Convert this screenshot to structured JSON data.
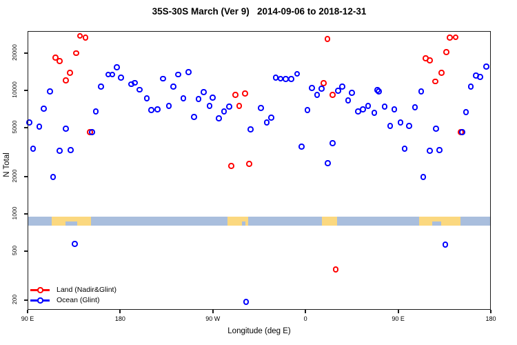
{
  "chart_data": {
    "type": "scatter",
    "title": "35S-30S March (Ver 9)   2014-09-06 to 2018-12-31",
    "xlabel": "Longitude (deg E)",
    "ylabel": "N Total",
    "x_axis": {
      "lim": [
        90,
        540
      ],
      "note": "longitude wraps eastward: 90E to 180 to 90W to 0 to 90E to 180",
      "ticks": [
        {
          "v": 90,
          "label": "90 E"
        },
        {
          "v": 180,
          "label": "180"
        },
        {
          "v": 270,
          "label": "90 W"
        },
        {
          "v": 360,
          "label": "0"
        },
        {
          "v": 450,
          "label": "90 E"
        },
        {
          "v": 540,
          "label": "180"
        }
      ]
    },
    "y_axis": {
      "scale": "log",
      "lim": [
        167,
        30270
      ],
      "ticks": [
        200,
        500,
        1000,
        2000,
        5000,
        10000,
        20000
      ],
      "tick_labels": [
        "200",
        "500",
        "1000",
        "2000",
        "5000",
        "10000",
        "20000"
      ]
    },
    "grid": false,
    "map_band": {
      "description": "35S-30S latitude strip map: ocean vs land along longitude",
      "ocean_color": "#a9bedd",
      "land_color": "#fbd87f",
      "n_range": [
        805,
        950
      ],
      "land_segments": [
        {
          "name": "australia",
          "lon": [
            113.5,
            151.5
          ]
        },
        {
          "name": "south-america",
          "lon": [
            284.0,
            304.0
          ]
        },
        {
          "name": "south-africa",
          "lon": [
            376.0,
            390.5
          ]
        },
        {
          "name": "australia-2",
          "lon": [
            470.5,
            510.5
          ]
        }
      ],
      "bites": [
        {
          "name": "great-australian-bight",
          "lon": [
            126.5,
            138.5
          ]
        },
        {
          "name": "rio-de-la-plata",
          "lon": [
            298.5,
            301.5
          ]
        },
        {
          "name": "great-australian-bight-2",
          "lon": [
            483.0,
            492.0
          ]
        }
      ]
    },
    "series": [
      {
        "name": "Land (Nadir&Glint)",
        "color": "#ff0000",
        "points": [
          [
            141,
            27600
          ],
          [
            146.5,
            26600
          ],
          [
            137.5,
            20000
          ],
          [
            117.5,
            18300
          ],
          [
            121.5,
            17200
          ],
          [
            131.5,
            13800
          ],
          [
            127.5,
            12000
          ],
          [
            151,
            4560
          ],
          [
            292,
            9140
          ],
          [
            301.5,
            9380
          ],
          [
            296,
            7440
          ],
          [
            288,
            2430
          ],
          [
            305.5,
            2520
          ],
          [
            381.5,
            25900
          ],
          [
            378,
            11400
          ],
          [
            386.5,
            9140
          ],
          [
            389.5,
            353
          ],
          [
            500.5,
            26600
          ],
          [
            506,
            26900
          ],
          [
            497,
            20300
          ],
          [
            477,
            18100
          ],
          [
            481,
            17400
          ],
          [
            492.5,
            13800
          ],
          [
            486.5,
            11800
          ],
          [
            511,
            4560
          ]
        ]
      },
      {
        "name": "Ocean (Glint)",
        "color": "#0000ff",
        "points": [
          [
            177,
            15300
          ],
          [
            168.5,
            13400
          ],
          [
            172.5,
            13400
          ],
          [
            181,
            12600
          ],
          [
            191,
            11200
          ],
          [
            194.5,
            11500
          ],
          [
            199,
            10100
          ],
          [
            161.5,
            10700
          ],
          [
            112,
            9750
          ],
          [
            106,
            7070
          ],
          [
            92,
            5460
          ],
          [
            101.5,
            5060
          ],
          [
            156.5,
            6710
          ],
          [
            127.5,
            4870
          ],
          [
            153,
            4560
          ],
          [
            95.5,
            3350
          ],
          [
            121.5,
            3230
          ],
          [
            132,
            3270
          ],
          [
            115,
            1980
          ],
          [
            222,
            12400
          ],
          [
            236.5,
            13400
          ],
          [
            246.5,
            14000
          ],
          [
            232,
            10700
          ],
          [
            206,
            8570
          ],
          [
            210.5,
            6890
          ],
          [
            216.5,
            6980
          ],
          [
            227.5,
            7440
          ],
          [
            241.5,
            8570
          ],
          [
            256.5,
            8460
          ],
          [
            261.5,
            9620
          ],
          [
            270,
            8680
          ],
          [
            267,
            7440
          ],
          [
            252,
            6060
          ],
          [
            276,
            5900
          ],
          [
            281,
            6710
          ],
          [
            286,
            7340
          ],
          [
            307,
            4800
          ],
          [
            317,
            7160
          ],
          [
            331.5,
            12600
          ],
          [
            336,
            12400
          ],
          [
            341,
            12300
          ],
          [
            346.5,
            12300
          ],
          [
            352,
            13600
          ],
          [
            366.5,
            10400
          ],
          [
            376,
            10300
          ],
          [
            371.5,
            9140
          ],
          [
            392,
            9870
          ],
          [
            396,
            10700
          ],
          [
            405.5,
            9500
          ],
          [
            401.5,
            8240
          ],
          [
            327,
            5980
          ],
          [
            322.5,
            5460
          ],
          [
            362,
            6890
          ],
          [
            411.5,
            6710
          ],
          [
            416,
            6980
          ],
          [
            421,
            7440
          ],
          [
            427,
            6540
          ],
          [
            430,
            10000
          ],
          [
            356.5,
            3480
          ],
          [
            386.5,
            3710
          ],
          [
            382,
            2560
          ],
          [
            431.5,
            9750
          ],
          [
            437,
            7340
          ],
          [
            446.5,
            6980
          ],
          [
            466.5,
            7250
          ],
          [
            472.5,
            9750
          ],
          [
            452.5,
            5460
          ],
          [
            442.5,
            5120
          ],
          [
            461,
            5120
          ],
          [
            487,
            4870
          ],
          [
            516,
            6620
          ],
          [
            512.5,
            4560
          ],
          [
            456.5,
            3350
          ],
          [
            481,
            3230
          ],
          [
            490.5,
            3270
          ],
          [
            474.5,
            1980
          ],
          [
            521,
            10700
          ],
          [
            526,
            13100
          ],
          [
            530,
            12800
          ],
          [
            536,
            15500
          ],
          [
            136,
            568
          ],
          [
            496,
            561
          ],
          [
            302.5,
            193
          ]
        ]
      }
    ]
  },
  "legend": {
    "entries": [
      {
        "label": "Land (Nadir&Glint)",
        "color": "#ff0000"
      },
      {
        "label": "Ocean (Glint)",
        "color": "#0000ff"
      }
    ]
  }
}
